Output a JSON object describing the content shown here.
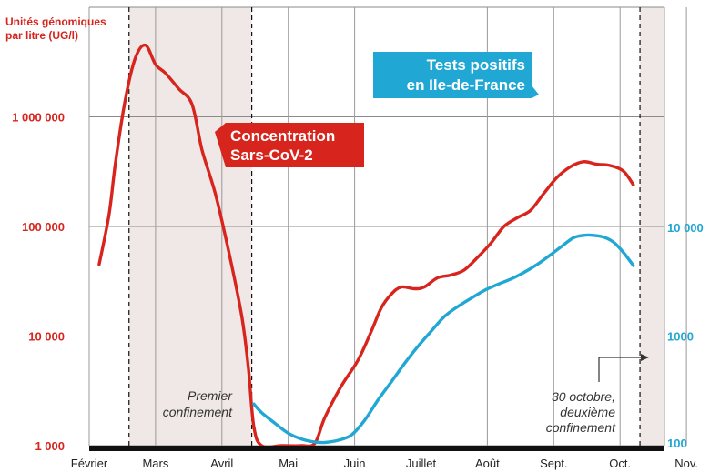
{
  "chart_data": {
    "type": "line",
    "x_type": "month",
    "x_ticks": [
      "Février",
      "Mars",
      "Avril",
      "Mai",
      "Juin",
      "Juillet",
      "Août",
      "Sept.",
      "Oct.",
      "Nov."
    ],
    "y_left": {
      "label_lines": [
        "Unités génomiques",
        "par litre (UG/l)"
      ],
      "scale": "log",
      "ylim": [
        1000,
        10000000
      ],
      "ticks": [
        {
          "value": 1000,
          "label": "1 000"
        },
        {
          "value": 10000,
          "label": "10 000"
        },
        {
          "value": 100000,
          "label": "100 000"
        },
        {
          "value": 1000000,
          "label": "1 000 000"
        }
      ],
      "color": "#d7251e"
    },
    "y_right": {
      "scale": "log",
      "ylim": [
        100,
        10000
      ],
      "ticks": [
        {
          "value": 100,
          "label": "100"
        },
        {
          "value": 1000,
          "label": "1000"
        },
        {
          "value": 10000,
          "label": "10 000"
        }
      ],
      "color": "#20a7d3"
    },
    "grid": {
      "horizontal": true,
      "vertical": true
    },
    "shaded_periods": [
      {
        "start": 1.1,
        "end": 2.95
      },
      {
        "start": 8.8,
        "end": 9.3
      }
    ],
    "series": [
      {
        "name": "Concentration Sars-CoV-2",
        "axis": "left",
        "color": "#d7251e",
        "points": [
          [
            0.65,
            45000
          ],
          [
            0.8,
            130000
          ],
          [
            0.9,
            400000
          ],
          [
            1.05,
            1500000
          ],
          [
            1.2,
            3500000
          ],
          [
            1.35,
            4500000
          ],
          [
            1.5,
            3000000
          ],
          [
            1.65,
            2500000
          ],
          [
            1.85,
            1800000
          ],
          [
            2.05,
            1300000
          ],
          [
            2.2,
            500000
          ],
          [
            2.4,
            200000
          ],
          [
            2.6,
            60000
          ],
          [
            2.8,
            15000
          ],
          [
            2.9,
            5000
          ],
          [
            2.98,
            1500
          ],
          [
            3.1,
            1000
          ],
          [
            3.4,
            1000
          ],
          [
            3.7,
            1000
          ],
          [
            3.9,
            1050
          ],
          [
            4.05,
            1800
          ],
          [
            4.3,
            3500
          ],
          [
            4.55,
            6000
          ],
          [
            4.75,
            11000
          ],
          [
            4.9,
            18000
          ],
          [
            5.05,
            24000
          ],
          [
            5.2,
            28000
          ],
          [
            5.4,
            27000
          ],
          [
            5.55,
            28000
          ],
          [
            5.75,
            34000
          ],
          [
            5.95,
            36000
          ],
          [
            6.15,
            40000
          ],
          [
            6.35,
            52000
          ],
          [
            6.55,
            70000
          ],
          [
            6.75,
            100000
          ],
          [
            6.95,
            120000
          ],
          [
            7.15,
            140000
          ],
          [
            7.35,
            200000
          ],
          [
            7.55,
            280000
          ],
          [
            7.75,
            350000
          ],
          [
            7.95,
            390000
          ],
          [
            8.15,
            370000
          ],
          [
            8.35,
            360000
          ],
          [
            8.55,
            320000
          ],
          [
            8.7,
            240000
          ]
        ]
      },
      {
        "name": "Tests positifs en Ile-de-France",
        "axis": "right",
        "color": "#20a7d3",
        "points": [
          [
            2.98,
            240
          ],
          [
            3.1,
            200
          ],
          [
            3.3,
            160
          ],
          [
            3.5,
            130
          ],
          [
            3.7,
            115
          ],
          [
            3.9,
            108
          ],
          [
            4.05,
            107
          ],
          [
            4.25,
            112
          ],
          [
            4.45,
            125
          ],
          [
            4.65,
            170
          ],
          [
            4.85,
            260
          ],
          [
            5.05,
            380
          ],
          [
            5.25,
            560
          ],
          [
            5.45,
            800
          ],
          [
            5.65,
            1100
          ],
          [
            5.85,
            1500
          ],
          [
            6.05,
            1850
          ],
          [
            6.25,
            2200
          ],
          [
            6.45,
            2600
          ],
          [
            6.65,
            2950
          ],
          [
            6.85,
            3300
          ],
          [
            7.05,
            3800
          ],
          [
            7.25,
            4500
          ],
          [
            7.45,
            5500
          ],
          [
            7.65,
            6800
          ],
          [
            7.8,
            7900
          ],
          [
            7.95,
            8300
          ],
          [
            8.1,
            8300
          ],
          [
            8.25,
            8000
          ],
          [
            8.4,
            7200
          ],
          [
            8.55,
            5800
          ],
          [
            8.7,
            4400
          ]
        ]
      }
    ],
    "series_labels": [
      "Concentration",
      "Sars-CoV-2",
      "Tests positifs",
      "en Ile-de-France"
    ],
    "annotations": {
      "first_lockdown": [
        "Premier",
        "confinement"
      ],
      "second_lockdown": [
        "30 octobre,",
        "deuxième",
        "confinement"
      ]
    }
  }
}
